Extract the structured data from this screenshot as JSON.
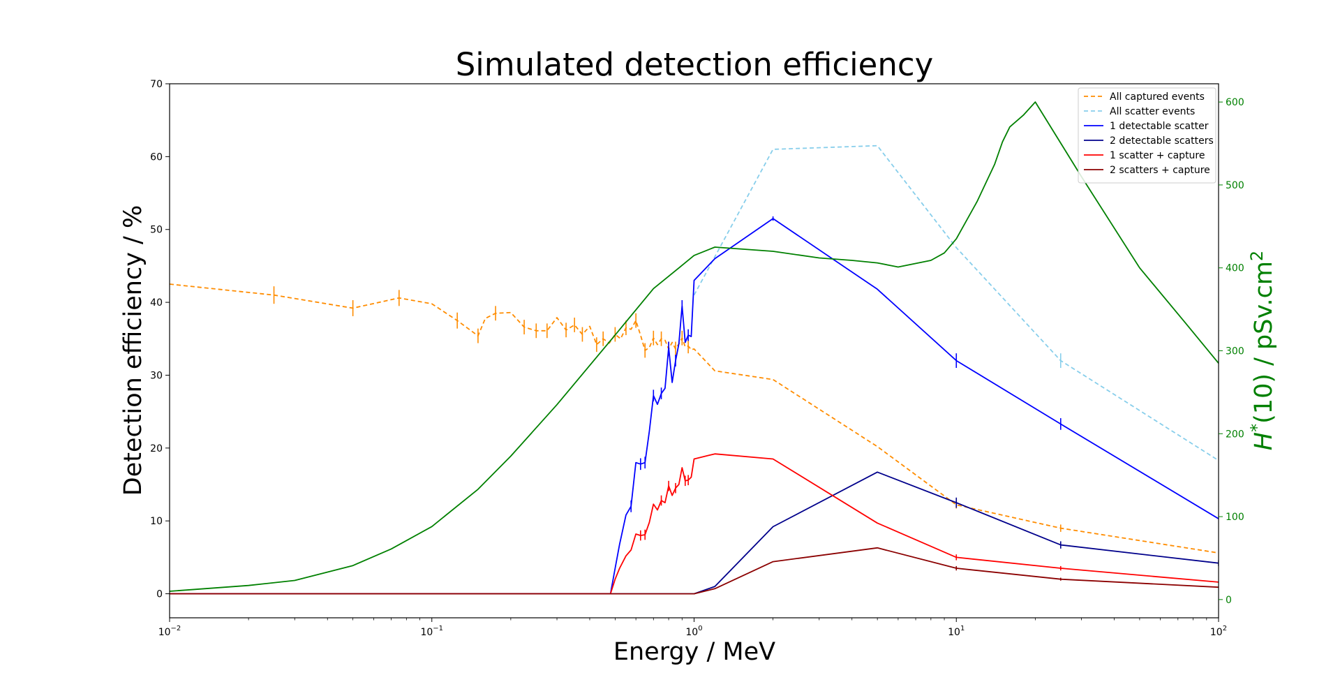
{
  "chart_data": {
    "type": "line",
    "title": "Simulated detection efficiency",
    "xlabel": "Energy / MeV",
    "ylabel": "Detection efficiency / %",
    "y2label_main": "H",
    "y2label_sup": "*",
    "y2label_rest": "(10) / pSv.cm",
    "y2label_sup2": "2",
    "xscale": "log",
    "xlim": [
      0.01,
      100
    ],
    "ylim": [
      -3.3,
      70
    ],
    "y2lim": [
      -22,
      622
    ],
    "x_ticks": [
      {
        "value": 0.01,
        "base": "10",
        "exp": "−2"
      },
      {
        "value": 0.1,
        "base": "10",
        "exp": "−1"
      },
      {
        "value": 1,
        "base": "10",
        "exp": "0"
      },
      {
        "value": 10,
        "base": "10",
        "exp": "1"
      },
      {
        "value": 100,
        "base": "10",
        "exp": "2"
      }
    ],
    "y_ticks": [
      "0",
      "10",
      "20",
      "30",
      "40",
      "50",
      "60",
      "70"
    ],
    "y2_ticks": [
      "0",
      "100",
      "200",
      "300",
      "400",
      "500",
      "600"
    ],
    "legend_position": "top-right",
    "grid": false,
    "colors": {
      "y2_axis": "#008000"
    },
    "series": [
      {
        "name": "All captured events",
        "axis": "left",
        "color": "#ff8c00",
        "dash": "6,4",
        "x": [
          0.01,
          0.025,
          0.05,
          0.075,
          0.1,
          0.125,
          0.15,
          0.16,
          0.175,
          0.2,
          0.225,
          0.25,
          0.275,
          0.3,
          0.325,
          0.35,
          0.375,
          0.4,
          0.425,
          0.45,
          0.475,
          0.5,
          0.525,
          0.55,
          0.575,
          0.6,
          0.625,
          0.65,
          0.675,
          0.7,
          0.725,
          0.75,
          0.775,
          0.8,
          0.825,
          0.85,
          0.875,
          0.9,
          0.925,
          0.95,
          0.975,
          1.0,
          1.2,
          2,
          5,
          10,
          25,
          100
        ],
        "y": [
          42.5,
          41,
          39.2,
          40.6,
          39.8,
          37.5,
          35.4,
          37.8,
          38.5,
          38.6,
          36.6,
          36.1,
          36.1,
          37.9,
          36.2,
          36.9,
          35.6,
          36.7,
          34.2,
          35.0,
          34.4,
          35.6,
          35.0,
          36.5,
          36.3,
          37.5,
          35.5,
          33.4,
          33.8,
          35.1,
          34.2,
          35.0,
          34.8,
          33.6,
          34.5,
          33.6,
          34.3,
          35.1,
          33.9,
          34.0,
          33.5,
          33.6,
          30.6,
          29.4,
          20.2,
          12.2,
          9.0,
          5.6
        ],
        "err_x": [
          0.025,
          0.05,
          0.075,
          0.125,
          0.15,
          0.175,
          0.225,
          0.25,
          0.275,
          0.325,
          0.35,
          0.375,
          0.425,
          0.45,
          0.5,
          0.55,
          0.6,
          0.65,
          0.7,
          0.75,
          0.8,
          0.85,
          0.9,
          0.95,
          10,
          25
        ],
        "err_y": [
          41,
          39.2,
          40.6,
          37.5,
          35.4,
          38.5,
          36.6,
          36.1,
          36.1,
          36.2,
          36.9,
          35.6,
          34.2,
          35.0,
          35.6,
          36.5,
          37.5,
          33.4,
          35.1,
          35.0,
          33.6,
          33.6,
          35.1,
          34.0,
          12.2,
          9.0
        ],
        "err_size": [
          1.2,
          1.1,
          1.1,
          1.1,
          1.0,
          1.0,
          1.0,
          1.0,
          1.0,
          1.0,
          1.0,
          1.0,
          1.0,
          1.0,
          1.0,
          1.0,
          1.0,
          1.0,
          1.0,
          1.0,
          1.0,
          1.0,
          1.0,
          1.0,
          0.5,
          0.5
        ]
      },
      {
        "name": "All scatter events",
        "axis": "left",
        "color": "#87ceeb",
        "dash": "6,4",
        "x": [
          1.0,
          2,
          5,
          10,
          25,
          100
        ],
        "y": [
          41.0,
          61.0,
          61.5,
          47.5,
          32.0,
          18.3
        ],
        "err_x": [
          25
        ],
        "err_y": [
          32.0
        ],
        "err_size": [
          1.0
        ]
      },
      {
        "name": "1 detectable scatter",
        "axis": "left",
        "color": "#0000ff",
        "dash": "",
        "x": [
          0.01,
          0.48,
          0.5,
          0.52,
          0.55,
          0.575,
          0.6,
          0.625,
          0.65,
          0.675,
          0.7,
          0.725,
          0.75,
          0.775,
          0.8,
          0.825,
          0.85,
          0.875,
          0.9,
          0.925,
          0.95,
          0.975,
          1.0,
          1.2,
          2,
          5,
          10,
          25,
          100
        ],
        "y": [
          0,
          0,
          3.5,
          6.8,
          10.8,
          12.0,
          18.0,
          17.8,
          18.0,
          22.3,
          27.2,
          26.0,
          27.5,
          28.2,
          33.8,
          29.0,
          32.0,
          34.3,
          39.5,
          34.5,
          35.5,
          35.3,
          43.0,
          46.0,
          51.5,
          41.8,
          32.0,
          23.3,
          10.3
        ],
        "err_x": [
          0.575,
          0.625,
          0.65,
          0.7,
          0.75,
          0.8,
          0.85,
          0.9,
          0.95,
          2,
          10,
          25
        ],
        "err_y": [
          12.0,
          17.8,
          18.0,
          27.2,
          27.5,
          33.8,
          32.0,
          39.5,
          35.5,
          51.5,
          32.0,
          23.3
        ],
        "err_size": [
          0.8,
          0.8,
          0.8,
          0.8,
          0.8,
          0.8,
          0.8,
          0.8,
          0.8,
          0.3,
          1.0,
          0.8
        ]
      },
      {
        "name": "2 detectable scatters",
        "axis": "left",
        "color": "#00008b",
        "dash": "",
        "x": [
          0.01,
          1.0,
          1.2,
          2,
          5,
          10,
          25,
          100
        ],
        "y": [
          0,
          0,
          1.0,
          9.2,
          16.7,
          12.5,
          6.7,
          4.2
        ],
        "err_x": [
          10,
          25,
          100
        ],
        "err_y": [
          12.5,
          6.7,
          4.2
        ],
        "err_size": [
          0.7,
          0.5,
          0.4
        ]
      },
      {
        "name": "1 scatter + capture",
        "axis": "left",
        "color": "#ff0000",
        "dash": "",
        "x": [
          0.01,
          0.48,
          0.5,
          0.52,
          0.55,
          0.575,
          0.6,
          0.625,
          0.65,
          0.675,
          0.7,
          0.725,
          0.75,
          0.775,
          0.8,
          0.825,
          0.85,
          0.875,
          0.9,
          0.925,
          0.95,
          0.975,
          1.0,
          1.2,
          2,
          5,
          10,
          25,
          100
        ],
        "y": [
          0,
          0,
          2.0,
          3.5,
          5.2,
          6.0,
          8.2,
          8.0,
          8.1,
          9.8,
          12.3,
          11.5,
          12.8,
          12.5,
          14.8,
          13.5,
          14.5,
          15.0,
          17.3,
          15.5,
          15.6,
          16.0,
          18.5,
          19.2,
          18.5,
          9.7,
          5.0,
          3.5,
          1.6
        ],
        "err_x": [
          0.625,
          0.65,
          0.75,
          0.8,
          0.85,
          0.925,
          0.95,
          10,
          25
        ],
        "err_y": [
          8.0,
          8.1,
          12.8,
          14.8,
          14.5,
          15.5,
          15.6,
          5.0,
          3.5
        ],
        "err_size": [
          0.7,
          0.7,
          0.7,
          0.7,
          0.7,
          0.7,
          0.7,
          0.4,
          0.3
        ]
      },
      {
        "name": "2 scatters + capture",
        "axis": "left",
        "color": "#8b0000",
        "dash": "",
        "x": [
          0.01,
          1.0,
          1.2,
          2,
          5,
          10,
          25,
          100
        ],
        "y": [
          0,
          0,
          0.7,
          4.4,
          6.3,
          3.5,
          2.0,
          0.9
        ],
        "err_x": [
          10,
          25
        ],
        "err_y": [
          3.5,
          2.0
        ],
        "err_size": [
          0.3,
          0.2
        ]
      },
      {
        "axis": "right",
        "color": "#008000",
        "dash": "",
        "x": [
          0.01,
          0.02,
          0.03,
          0.05,
          0.07,
          0.1,
          0.15,
          0.2,
          0.3,
          0.5,
          0.7,
          0.9,
          1.0,
          1.2,
          2,
          3,
          4,
          5,
          6,
          8,
          9,
          10,
          12,
          14,
          15,
          16,
          18,
          20,
          30,
          50,
          75,
          100
        ],
        "y": [
          10,
          17,
          23,
          41,
          61,
          88,
          133,
          173,
          235,
          319,
          375,
          403,
          415,
          425,
          420,
          412,
          409,
          406,
          401,
          409,
          418,
          435,
          480,
          525,
          552,
          570,
          584,
          600,
          510,
          400,
          333,
          285
        ]
      }
    ]
  }
}
